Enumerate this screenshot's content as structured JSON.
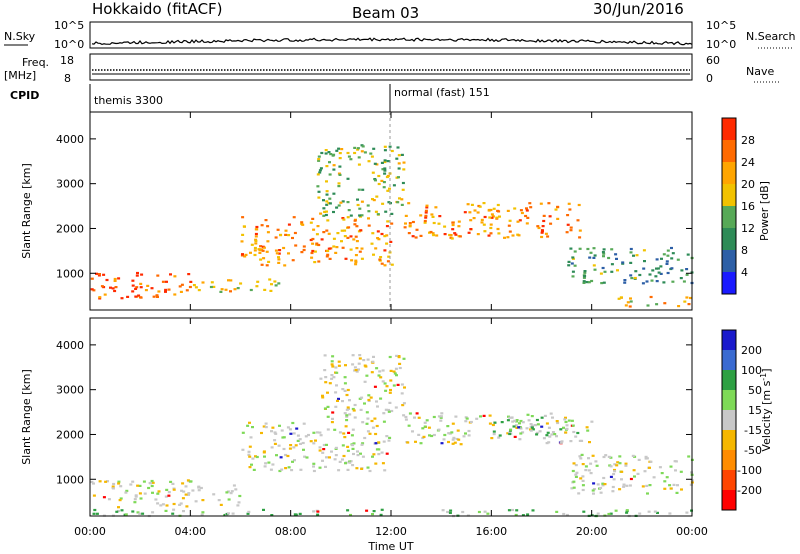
{
  "header": {
    "station": "Hokkaido (fitACF)",
    "beam": "Beam 03",
    "date": "30/Jun/2016"
  },
  "colors": {
    "power": [
      "#1a1aff",
      "#2d5fa6",
      "#2e8b57",
      "#57a957",
      "#f2c200",
      "#ffa500",
      "#ff6a00",
      "#ff2a00"
    ],
    "velocity": [
      "#1a1acc",
      "#3a6bd1",
      "#2ea043",
      "#7ed957",
      "#c8c8c8",
      "#f5b700",
      "#ff8c00",
      "#ff4500",
      "#ff0000"
    ]
  },
  "top_panels": {
    "nsky": {
      "label": "N.Sky",
      "left_ticks": [
        "10^5",
        "10^0"
      ],
      "right_ticks": [
        "10^5",
        "10^0"
      ],
      "right_label": "N.Search"
    },
    "freq": {
      "label_top": "Freq.",
      "label_bot": "[MHz]",
      "left_ticks": [
        "18",
        "8"
      ],
      "right_ticks": [
        "60",
        "0"
      ],
      "right_label": "Nave"
    },
    "cpid": {
      "label": "CPID",
      "segments": [
        "themis 3300",
        "normal (fast) 151"
      ]
    }
  },
  "chart_data": [
    {
      "type": "heatmap",
      "title": "",
      "xlabel": "",
      "ylabel": "Slant Range [km]",
      "xlim": [
        0,
        24
      ],
      "ylim": [
        180,
        4600
      ],
      "yticks": [
        1000,
        2000,
        3000,
        4000
      ],
      "colorbar": {
        "label": "Power [dB]",
        "ticks": [
          "4",
          "8",
          "12",
          "16",
          "20",
          "24",
          "28"
        ],
        "range": [
          0,
          30
        ]
      },
      "features": [
        {
          "t0": 0.0,
          "t1": 4.0,
          "r0": 450,
          "r1": 1050,
          "value": 26
        },
        {
          "t0": 4.0,
          "t1": 7.5,
          "r0": 600,
          "r1": 900,
          "value": 18
        },
        {
          "t0": 6.0,
          "t1": 12.0,
          "r0": 1200,
          "r1": 2300,
          "value": 22
        },
        {
          "t0": 9.0,
          "t1": 12.5,
          "r0": 2300,
          "r1": 3900,
          "value": 14
        },
        {
          "t0": 12.5,
          "t1": 19.5,
          "r0": 1800,
          "r1": 2600,
          "value": 22
        },
        {
          "t0": 19.0,
          "t1": 24.0,
          "r0": 800,
          "r1": 1600,
          "value": 10
        },
        {
          "t0": 21.0,
          "t1": 24.0,
          "r0": 280,
          "r1": 500,
          "value": 20
        }
      ]
    },
    {
      "type": "heatmap",
      "title": "",
      "xlabel": "Time UT",
      "ylabel": "Slant Range [km]",
      "xlim": [
        0,
        24
      ],
      "ylim": [
        180,
        4600
      ],
      "yticks": [
        1000,
        2000,
        3000,
        4000
      ],
      "xticks": [
        "00:00",
        "04:00",
        "08:00",
        "12:00",
        "16:00",
        "20:00",
        "00:00"
      ],
      "colorbar": {
        "label": "Velocity [m s^-1]",
        "ticks": [
          "200",
          "100",
          "50",
          "15",
          "-15",
          "-50",
          "-100",
          "-200"
        ],
        "range": [
          -250,
          250
        ]
      },
      "features": [
        {
          "t0": 0.0,
          "t1": 6.0,
          "r0": 400,
          "r1": 1000,
          "value": 0
        },
        {
          "t0": 6.0,
          "t1": 12.0,
          "r0": 1200,
          "r1": 2300,
          "value": 0
        },
        {
          "t0": 9.0,
          "t1": 12.5,
          "r0": 2300,
          "r1": 3800,
          "value": 0
        },
        {
          "t0": 12.5,
          "t1": 20.0,
          "r0": 1800,
          "r1": 2500,
          "value": 0
        },
        {
          "t0": 16.0,
          "t1": 19.5,
          "r0": 2000,
          "r1": 2400,
          "value": 30
        },
        {
          "t0": 19.0,
          "t1": 24.0,
          "r0": 700,
          "r1": 1600,
          "value": 0
        },
        {
          "t0": 0.0,
          "t1": 24.0,
          "r0": 200,
          "r1": 350,
          "value": 30
        }
      ]
    }
  ]
}
